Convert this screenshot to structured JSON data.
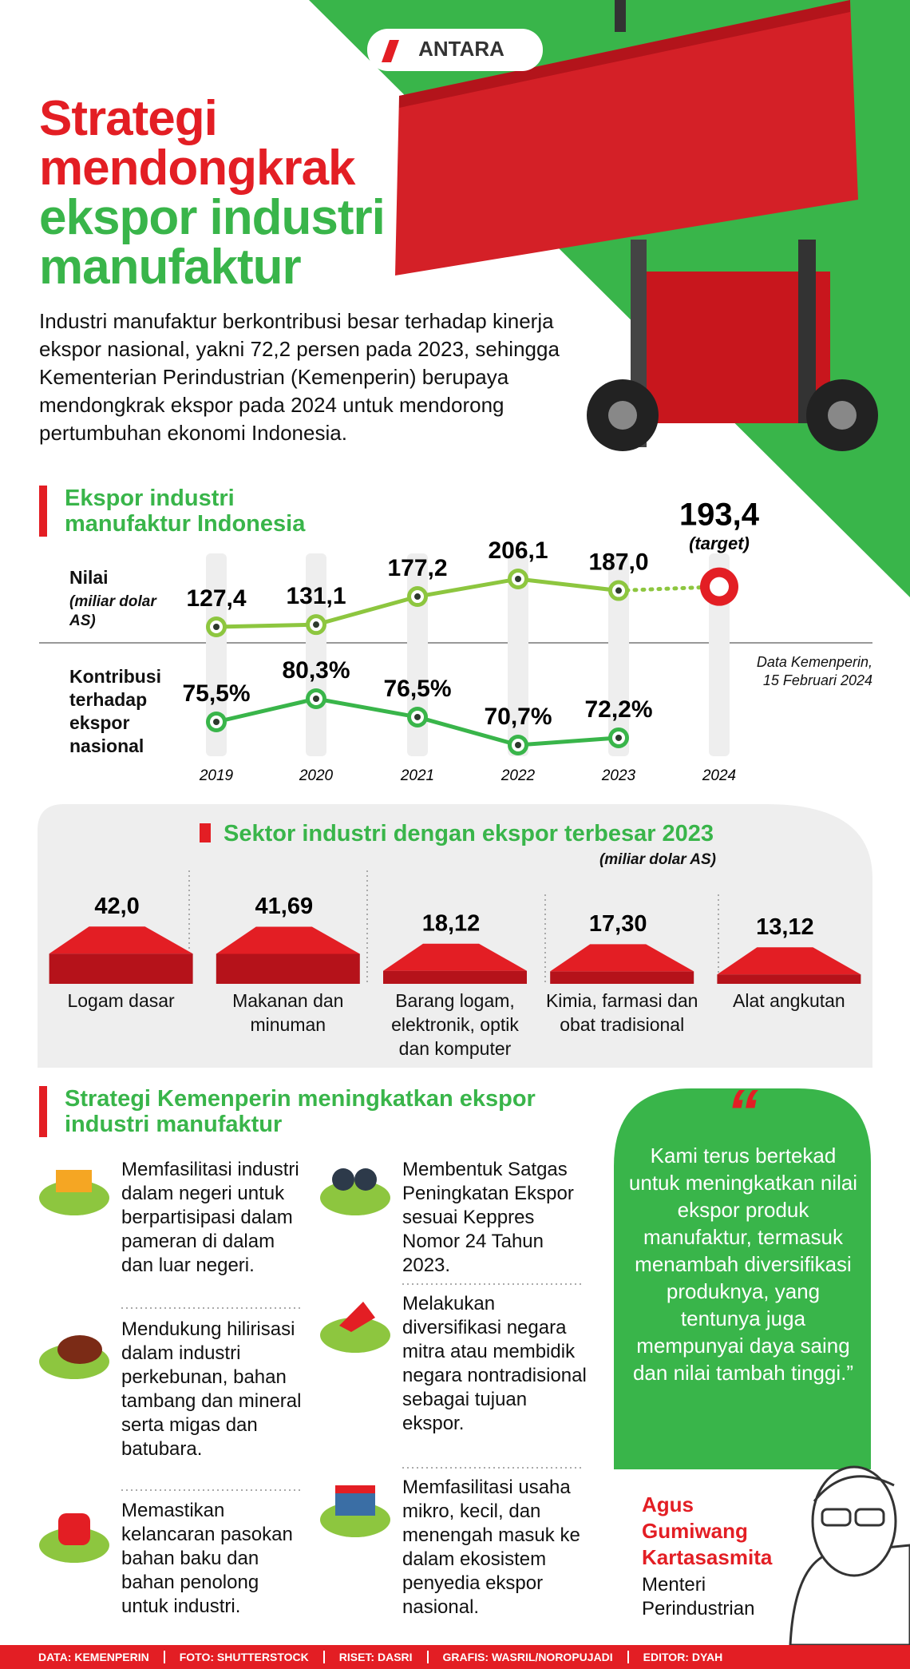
{
  "header": {
    "logo": "ANTARA",
    "title_red": "Strategi mendongkrak",
    "title_green": "ekspor industri manufaktur",
    "intro": "Industri manufaktur berkontribusi besar terhadap kinerja ekspor nasional, yakni 72,2 persen pada 2023, sehingga Kementerian Perindustrian (Kemenperin) berupaya mendongkrak ekspor pada 2024 untuk mendorong pertumbuhan ekonomi Indonesia."
  },
  "chart_data": [
    {
      "type": "line",
      "title": "Ekspor industri manufaktur Indonesia",
      "categories": [
        "2019",
        "2020",
        "2021",
        "2022",
        "2023",
        "2024"
      ],
      "series": [
        {
          "name": "Nilai",
          "unit": "(miliar dolar AS)",
          "color": "#8dc63f",
          "values": [
            127.4,
            131.1,
            177.2,
            206.1,
            187.0,
            193.4
          ],
          "value_labels": [
            "127,4",
            "131,1",
            "177,2",
            "206,1",
            "187,0",
            "193,4"
          ],
          "annotation": "(target)"
        },
        {
          "name": "Kontribusi terhadap ekspor nasional",
          "color": "#39b54a",
          "values": [
            75.5,
            80.3,
            76.5,
            70.7,
            72.2,
            null
          ],
          "value_labels": [
            "75,5%",
            "80,3%",
            "76,5%",
            "70,7%",
            "72,2%",
            null
          ]
        }
      ],
      "note": "Data Kemenperin, 15 Februari 2024"
    },
    {
      "type": "bar",
      "title": "Sektor industri dengan ekspor terbesar 2023",
      "subtitle": "(miliar dolar AS)",
      "categories": [
        "Logam dasar",
        "Makanan dan minuman",
        "Barang logam, elektronik, optik dan komputer",
        "Kimia, farmasi dan obat tradisional",
        "Alat angkutan"
      ],
      "values": [
        42.0,
        41.69,
        18.12,
        17.3,
        13.12
      ],
      "value_labels": [
        "42,0",
        "41,69",
        "18,12",
        "17,30",
        "13,12"
      ],
      "color": "#e31e24"
    }
  ],
  "strategy": {
    "title": "Strategi Kemenperin meningkatkan ekspor industri manufaktur",
    "items": [
      "Memfasilitasi industri dalam negeri untuk berpartisipasi dalam pameran di dalam dan luar negeri.",
      "Mendukung hilirisasi dalam industri perkebunan, bahan tambang dan mineral serta migas dan batubara.",
      "Memastikan kelancaran pasokan bahan baku dan bahan penolong untuk industri.",
      "Membentuk Satgas Peningkatan Ekspor sesuai Keppres Nomor 24 Tahun 2023.",
      "Melakukan diversifikasi negara mitra atau membidik negara nontradisional sebagai tujuan ekspor.",
      "Memfasilitasi usaha mikro, kecil, dan menengah masuk ke dalam ekosistem penyedia ekspor nasional."
    ]
  },
  "quote": {
    "text": "Kami terus bertekad untuk meningkatkan nilai ekspor produk manufaktur, termasuk menambah diversifikasi produknya, yang tentunya juga mempunyai daya saing dan nilai tambah tinggi.”",
    "name": "Agus Gumiwang Kartasasmita",
    "role": "Menteri Perindustrian"
  },
  "footer": [
    "DATA: KEMENPERIN",
    "FOTO: SHUTTERSTOCK",
    "RISET: DASRI",
    "GRAFIS: WASRIL/NOROPUJADI",
    "EDITOR: DYAH"
  ]
}
